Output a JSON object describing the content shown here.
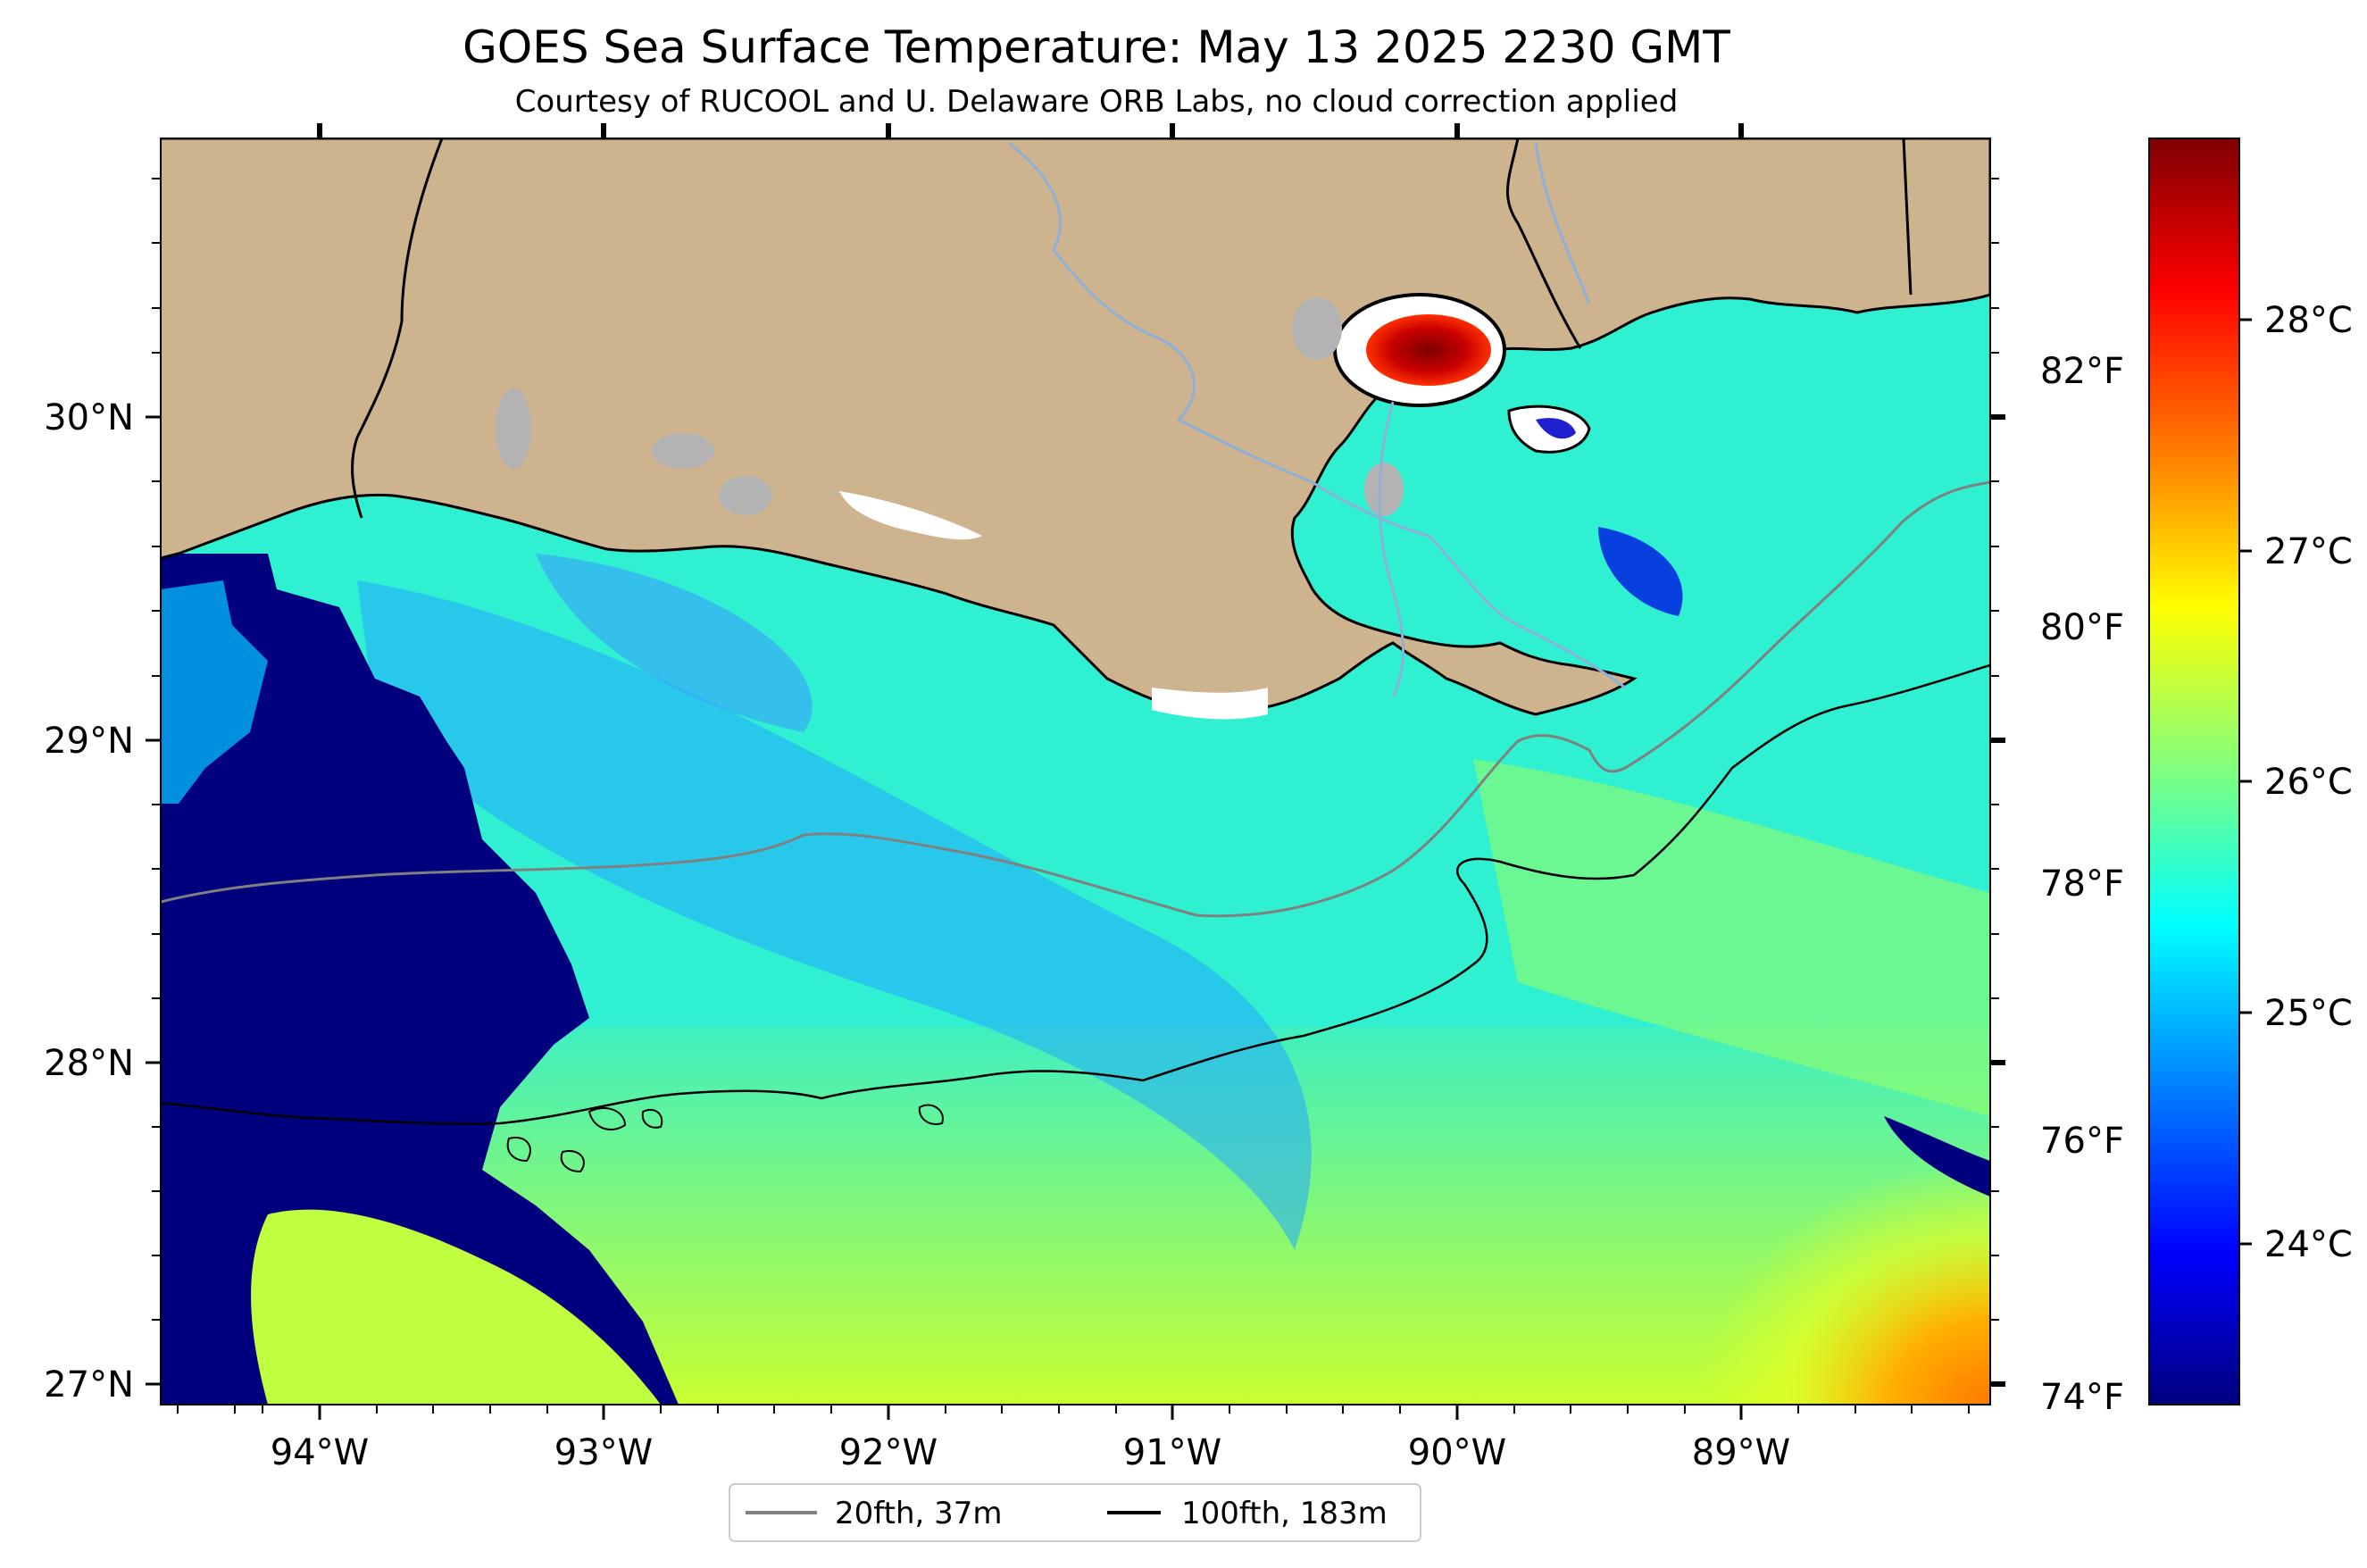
{
  "title": "GOES Sea Surface Temperature: May 13 2025 2230 GMT",
  "subtitle": "Courtesy of RUCOOL and U. Delaware ORB Labs, no cloud correction applied",
  "map": {
    "lon_range": [
      -94.55,
      -88.17
    ],
    "lat_range": [
      26.93,
      30.85
    ],
    "land_color": "#cdb48e",
    "lake_color": "#b3b3b3",
    "river_color": "#8fb0d6",
    "coastline_color": "#000000"
  },
  "axes": {
    "lon_ticks": [
      {
        "value": -94,
        "label": "94°W"
      },
      {
        "value": -93,
        "label": "93°W"
      },
      {
        "value": -92,
        "label": "92°W"
      },
      {
        "value": -91,
        "label": "91°W"
      },
      {
        "value": -90,
        "label": "90°W"
      },
      {
        "value": -89,
        "label": "89°W"
      }
    ],
    "lat_ticks": [
      {
        "value": 30,
        "label": "30°N"
      },
      {
        "value": 29,
        "label": "29°N"
      },
      {
        "value": 28,
        "label": "28°N"
      },
      {
        "value": 27,
        "label": "27°N"
      }
    ]
  },
  "colorbar": {
    "colormap": "jet",
    "colors": [
      "#00007f",
      "#0000ff",
      "#007fff",
      "#00ffff",
      "#7fff7f",
      "#ffff00",
      "#ff7f00",
      "#ff0000",
      "#7f0000"
    ],
    "celsius_range": [
      23.33,
      28.89
    ],
    "celsius_ticks": [
      {
        "value": 24,
        "label": "24°C"
      },
      {
        "value": 25,
        "label": "25°C"
      },
      {
        "value": 26,
        "label": "26°C"
      },
      {
        "value": 27,
        "label": "27°C"
      },
      {
        "value": 28,
        "label": "28°C"
      }
    ],
    "fahrenheit_ticks": [
      {
        "value": 74,
        "label": "74°F"
      },
      {
        "value": 76,
        "label": "76°F"
      },
      {
        "value": 78,
        "label": "78°F"
      },
      {
        "value": 80,
        "label": "80°F"
      },
      {
        "value": 82,
        "label": "82°F"
      }
    ]
  },
  "legend": [
    {
      "label": "20fth, 37m",
      "color": "#808080"
    },
    {
      "label": "100fth, 183m",
      "color": "#000000"
    }
  ]
}
